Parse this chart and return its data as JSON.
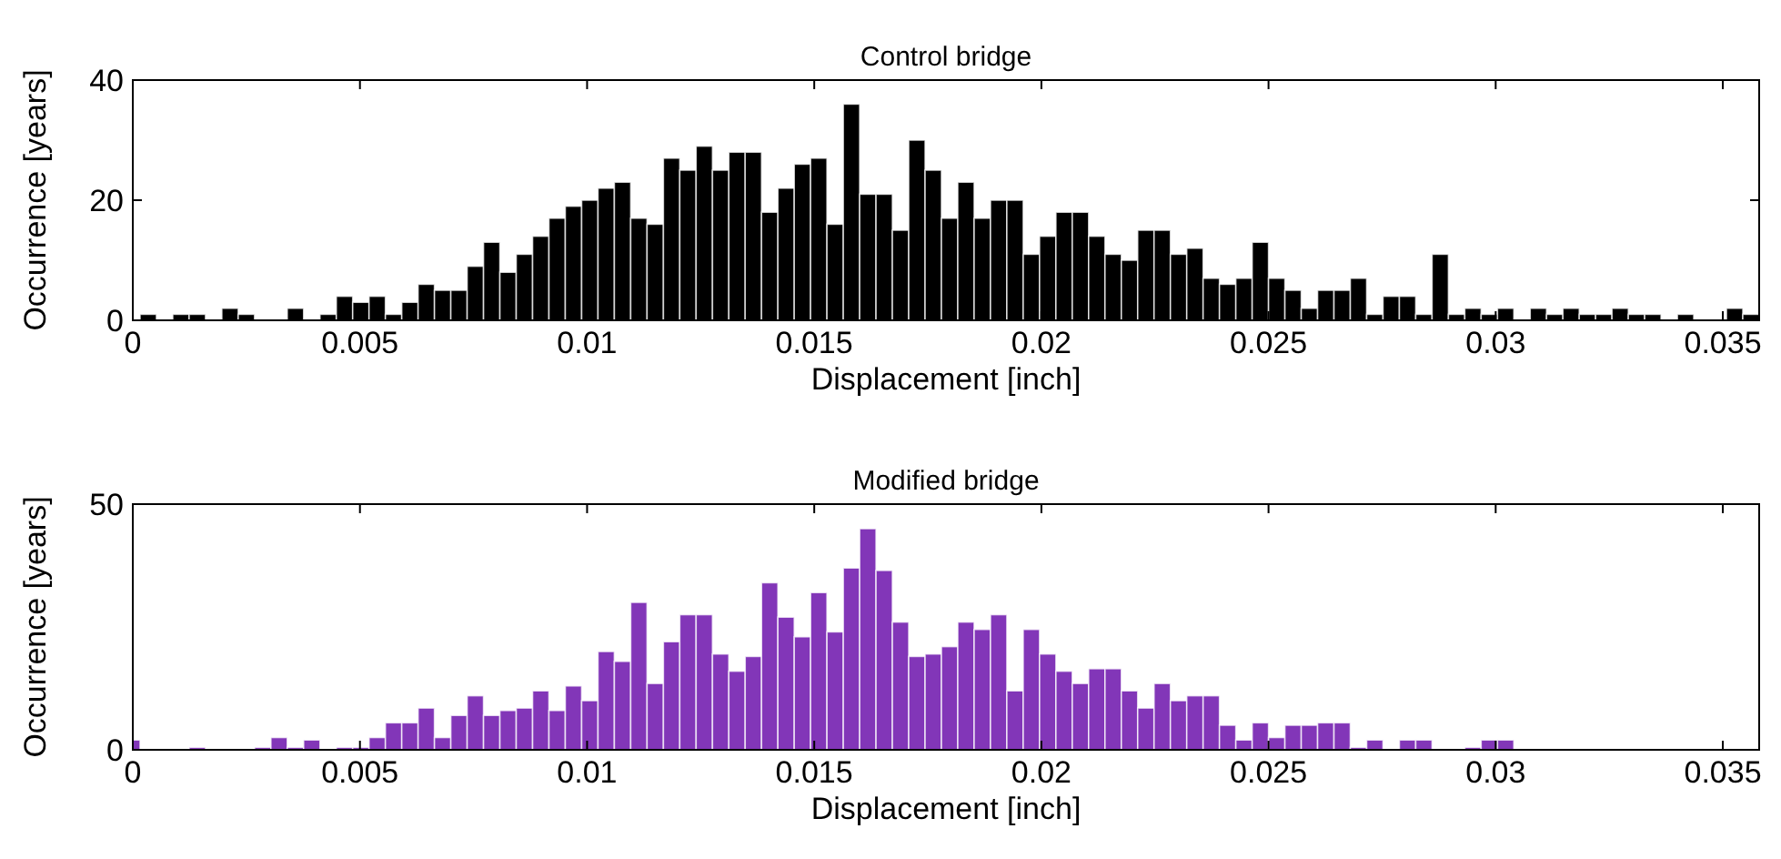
{
  "chart_data": [
    {
      "type": "histogram",
      "title": "Control bridge",
      "xlabel": "Displacement [inch]",
      "ylabel": "Occurrence [years]",
      "color": "#000000",
      "xlim": [
        0,
        0.0358
      ],
      "ylim": [
        0,
        40
      ],
      "xticks": [
        0,
        0.005,
        0.01,
        0.015,
        0.02,
        0.025,
        0.03,
        0.035
      ],
      "yticks": [
        0,
        20,
        40
      ],
      "bins": [
        0.00016,
        0.00052,
        0.00088,
        0.00124,
        0.0016,
        0.00196,
        0.00232,
        0.00268,
        0.0034,
        0.00376,
        0.00412,
        0.00448,
        0.00484,
        0.0052,
        0.00556,
        0.00592,
        0.00628,
        0.00664,
        0.007,
        0.00736,
        0.00772,
        0.00808,
        0.00844,
        0.0088,
        0.00916,
        0.00952,
        0.00988,
        0.01024,
        0.0106,
        0.01096,
        0.01132,
        0.01168,
        0.01204,
        0.0124,
        0.01276,
        0.01312,
        0.01348,
        0.01384,
        0.0142,
        0.01456,
        0.01492,
        0.01528,
        0.01564,
        0.016,
        0.01636,
        0.01672,
        0.01708,
        0.01744,
        0.0178,
        0.01816,
        0.01852,
        0.01888,
        0.01924,
        0.0196,
        0.01996,
        0.02032,
        0.02068,
        0.02104,
        0.0214,
        0.02176,
        0.02212,
        0.02248,
        0.02284,
        0.0232,
        0.02356,
        0.02392,
        0.02428,
        0.02464,
        0.025,
        0.02536,
        0.02572,
        0.02608,
        0.02644,
        0.0268,
        0.02716,
        0.02752,
        0.02788,
        0.02824,
        0.0286,
        0.02896,
        0.02932,
        0.02968,
        0.03004,
        0.0304,
        0.03076,
        0.03112,
        0.03148,
        0.03184,
        0.0322,
        0.03256,
        0.03292,
        0.03328,
        0.03364,
        0.034,
        0.03436,
        0.03508,
        0.03544,
        0.0358
      ],
      "values": [
        1,
        0,
        1,
        1,
        0,
        2,
        1,
        0,
        2,
        0,
        1,
        4,
        3,
        4,
        1,
        3,
        6,
        5,
        5,
        9,
        13,
        8,
        11,
        14,
        17,
        19,
        20,
        22,
        23,
        17,
        16,
        27,
        25,
        29,
        25,
        28,
        28,
        18,
        22,
        26,
        27,
        16,
        36,
        21,
        21,
        15,
        30,
        25,
        17,
        23,
        17,
        20,
        20,
        11,
        14,
        18,
        18,
        14,
        11,
        10,
        15,
        15,
        11,
        12,
        7,
        6,
        7,
        13,
        7,
        5,
        2,
        5,
        5,
        7,
        1,
        4,
        4,
        1,
        11,
        1,
        2,
        1,
        2,
        0,
        2,
        1,
        2,
        1,
        1,
        2,
        1,
        1,
        0,
        1,
        0,
        2,
        1
      ]
    },
    {
      "type": "histogram",
      "title": "Modified bridge",
      "xlabel": "Displacement [inch]",
      "ylabel": "Occurrence [years]",
      "color": "#8236b8",
      "xlim": [
        0,
        0.0358
      ],
      "ylim": [
        0,
        50
      ],
      "xticks": [
        0,
        0.005,
        0.01,
        0.015,
        0.02,
        0.025,
        0.03,
        0.035
      ],
      "yticks": [
        0,
        50
      ],
      "bins": [
        0,
        0.00016,
        0.00124,
        0.0016,
        0.00268,
        0.00304,
        0.0034,
        0.00376,
        0.00412,
        0.00448,
        0.00484,
        0.0052,
        0.00556,
        0.00592,
        0.00628,
        0.00664,
        0.007,
        0.00736,
        0.00772,
        0.00808,
        0.00844,
        0.0088,
        0.00916,
        0.00952,
        0.00988,
        0.01024,
        0.0106,
        0.01096,
        0.01132,
        0.01168,
        0.01204,
        0.0124,
        0.01276,
        0.01312,
        0.01348,
        0.01384,
        0.0142,
        0.01456,
        0.01492,
        0.01528,
        0.01564,
        0.016,
        0.01636,
        0.01672,
        0.01708,
        0.01744,
        0.0178,
        0.01816,
        0.01852,
        0.01888,
        0.01924,
        0.0196,
        0.01996,
        0.02032,
        0.02068,
        0.02104,
        0.0214,
        0.02176,
        0.02212,
        0.02248,
        0.02284,
        0.0232,
        0.02356,
        0.02392,
        0.02428,
        0.02464,
        0.025,
        0.02536,
        0.02572,
        0.02608,
        0.02644,
        0.0268,
        0.02716,
        0.02752,
        0.02788,
        0.02824,
        0.0286,
        0.02932,
        0.02968,
        0.03004,
        0.0304
      ],
      "values": [
        2,
        0,
        0.5,
        0,
        0.5,
        2.5,
        0.5,
        2,
        0,
        0.5,
        0.5,
        2.5,
        5.5,
        5.5,
        8.5,
        2.5,
        7,
        11,
        7,
        8,
        8.5,
        12,
        8,
        13,
        10,
        20,
        18,
        30,
        13.5,
        22,
        27.5,
        27.5,
        19.5,
        16,
        19,
        34,
        27,
        23,
        32,
        24,
        37,
        45,
        36.5,
        26,
        19,
        19.5,
        21,
        26,
        24.5,
        27.5,
        12,
        24.5,
        19.5,
        16,
        13.5,
        16.5,
        16.5,
        12,
        8.5,
        13.5,
        10,
        11,
        11,
        5,
        2,
        5.5,
        2.5,
        5,
        5,
        5.5,
        5.5,
        0.5,
        2,
        0,
        2,
        2,
        0,
        0.5,
        2,
        2
      ]
    }
  ]
}
